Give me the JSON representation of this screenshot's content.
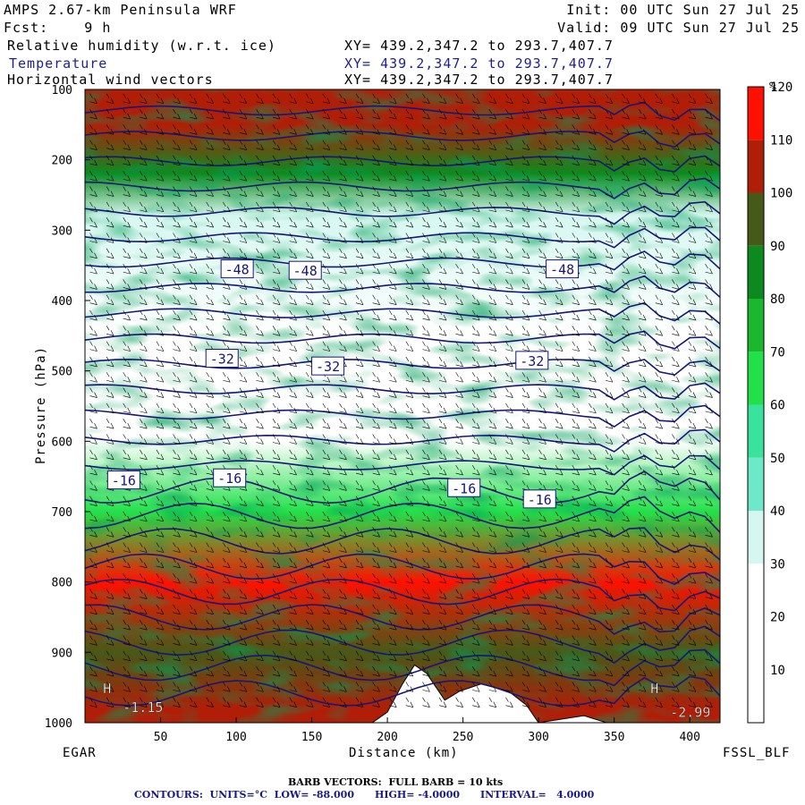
{
  "header": {
    "model": "AMPS 2.67-km Peninsula WRF",
    "fcst": "Fcst:    9 h",
    "init": "Init: 00 UTC Sun 27 Jul 25",
    "valid": "Valid: 09 UTC Sun 27 Jul 25",
    "fields": [
      {
        "name": "Relative humidity (w.r.t. ice)",
        "xy": "XY= 439.2,347.2 to 293.7,407.7"
      },
      {
        "name": "Temperature",
        "xy": "XY= 439.2,347.2 to 293.7,407.7"
      },
      {
        "name": "Horizontal wind vectors",
        "xy": "XY= 439.2,347.2 to 293.7,407.7"
      }
    ]
  },
  "footer": {
    "left_station": "EGAR",
    "right_station": "FSSL_BLF",
    "barb_note": "BARB VECTORS:  FULL BARB = 10 kts",
    "contour_note": "CONTOURS:  UNITS=°C  LOW= -88.000      HIGH= -4.0000      INTERVAL=   4.0000"
  },
  "colors": {
    "contour": "#16167a",
    "rh_levels": [
      "#ffffff",
      "#ffffff",
      "#ffffff",
      "#d6f7f0",
      "#6de8c8",
      "#39e39e",
      "#22e04a",
      "#1bb82f",
      "#0d8a1f",
      "#475918",
      "#b01e08",
      "#ff1000"
    ]
  },
  "chart_data": {
    "type": "heatmap",
    "title": "Relative humidity (w.r.t. ice)",
    "xlabel": "Distance (km)",
    "ylabel": "Pressure (hPa)",
    "xlim": [
      0,
      420
    ],
    "ylim": [
      1000,
      100
    ],
    "x_ticks": [
      50,
      100,
      150,
      200,
      250,
      300,
      350,
      400
    ],
    "y_ticks": [
      100,
      200,
      300,
      400,
      500,
      600,
      700,
      800,
      900,
      1000
    ],
    "colorbar": {
      "unit": "%",
      "levels": [
        10,
        20,
        30,
        40,
        50,
        60,
        70,
        80,
        90,
        100,
        110,
        120
      ]
    },
    "rh_profile": [
      {
        "p": 150,
        "rh": 100
      },
      {
        "p": 220,
        "rh": 80
      },
      {
        "p": 280,
        "rh": 30
      },
      {
        "p": 450,
        "rh": 5
      },
      {
        "p": 600,
        "rh": 10
      },
      {
        "p": 700,
        "rh": 60
      },
      {
        "p": 800,
        "rh": 112
      },
      {
        "p": 900,
        "rh": 95
      },
      {
        "p": 980,
        "rh": 105
      }
    ],
    "contour_labels": [
      {
        "x": 90,
        "p": 355,
        "text": "-48"
      },
      {
        "x": 135,
        "p": 357,
        "text": "-48"
      },
      {
        "x": 305,
        "p": 355,
        "text": "-48"
      },
      {
        "x": 80,
        "p": 482,
        "text": "-32"
      },
      {
        "x": 150,
        "p": 493,
        "text": "-32"
      },
      {
        "x": 285,
        "p": 485,
        "text": "-32"
      },
      {
        "x": 15,
        "p": 655,
        "text": "-16"
      },
      {
        "x": 85,
        "p": 652,
        "text": "-16"
      },
      {
        "x": 240,
        "p": 666,
        "text": "-16"
      },
      {
        "x": 290,
        "p": 682,
        "text": "-16"
      }
    ],
    "markers": [
      {
        "x": 12,
        "p": 958,
        "text": "H"
      },
      {
        "x": 25,
        "p": 985,
        "text": "-1.15"
      },
      {
        "x": 374,
        "p": 958,
        "text": "H"
      },
      {
        "x": 387,
        "p": 992,
        "text": "-2.99"
      }
    ],
    "terrain": [
      {
        "x": 190,
        "p": 1000
      },
      {
        "x": 200,
        "p": 985
      },
      {
        "x": 210,
        "p": 945
      },
      {
        "x": 218,
        "p": 918
      },
      {
        "x": 226,
        "p": 930
      },
      {
        "x": 238,
        "p": 968
      },
      {
        "x": 248,
        "p": 955
      },
      {
        "x": 262,
        "p": 945
      },
      {
        "x": 280,
        "p": 955
      },
      {
        "x": 292,
        "p": 975
      },
      {
        "x": 300,
        "p": 1000
      },
      {
        "x": 330,
        "p": 990
      },
      {
        "x": 345,
        "p": 1000
      }
    ]
  }
}
